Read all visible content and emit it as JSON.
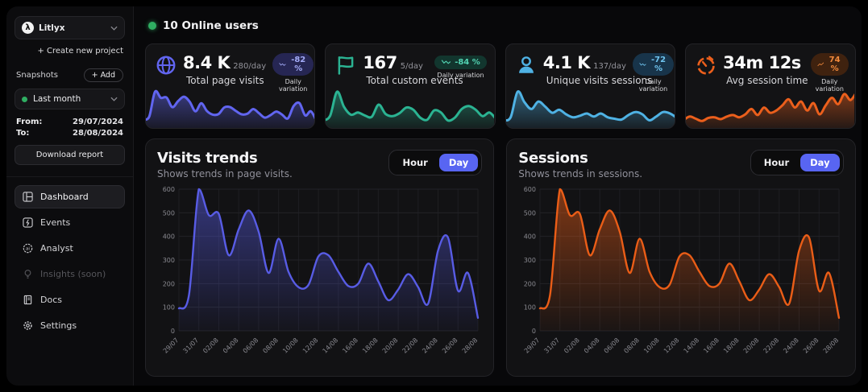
{
  "sidebar": {
    "project": {
      "name": "Litlyx"
    },
    "create_new_project": "+ Create new project",
    "snapshots_label": "Snapshots",
    "add_button": "+ Add",
    "snapshot_selected": "Last month",
    "snapshot_dot_color": "#2fae62",
    "from_label": "From:",
    "from_value": "29/07/2024",
    "to_label": "To:",
    "to_value": "28/08/2024",
    "download_button": "Download report",
    "nav": [
      {
        "label": "Dashboard",
        "icon": "dashboard-icon",
        "state": "active"
      },
      {
        "label": "Events",
        "icon": "events-icon",
        "state": "normal"
      },
      {
        "label": "Analyst",
        "icon": "analyst-icon",
        "state": "normal"
      },
      {
        "label": "Insights (soon)",
        "icon": "insights-icon",
        "state": "disabled"
      },
      {
        "label": "Docs",
        "icon": "docs-icon",
        "state": "normal"
      },
      {
        "label": "Settings",
        "icon": "settings-icon",
        "state": "normal"
      }
    ]
  },
  "header": {
    "online_users": "10 Online users",
    "online_dot_color": "#2fae62"
  },
  "toggle": {
    "hour": "Hour",
    "day": "Day",
    "active": "Day",
    "active_color": "#5865f2"
  },
  "stat_cards": [
    {
      "icon": "globe-icon",
      "value": "8.4 K",
      "per_day": "280/day",
      "label": "Total page visits",
      "badge": "-82 %",
      "badge_trend": "down",
      "badge_caption": "Daily variation",
      "accent": "#6165f0",
      "badge_bg": "#262653",
      "badge_fg": "#a3abf7",
      "spark": [
        95,
        150,
        600,
        490,
        495,
        320,
        430,
        510,
        420,
        245,
        390,
        250,
        185,
        195,
        315,
        320,
        250,
        190,
        200,
        285,
        210,
        130,
        175,
        240,
        185,
        115,
        340,
        395,
        170,
        245,
        55
      ]
    },
    {
      "icon": "flag-icon",
      "value": "167",
      "per_day": "5/day",
      "label": "Total custom events",
      "badge": "-84 %",
      "badge_trend": "down",
      "badge_caption": "Daily variation",
      "accent": "#2bb392",
      "badge_bg": "#12362e",
      "badge_fg": "#52d3b2",
      "spark": [
        12,
        25,
        92,
        50,
        28,
        34,
        26,
        22,
        56,
        30,
        24,
        32,
        48,
        42,
        20,
        14,
        40,
        34,
        12,
        20,
        44,
        52,
        42,
        24,
        34,
        14
      ]
    },
    {
      "icon": "user-icon",
      "value": "4.1 K",
      "per_day": "137/day",
      "label": "Unique visits sessions",
      "badge": "-72 %",
      "badge_trend": "down",
      "badge_caption": "Daily variation",
      "accent": "#4fb2e4",
      "badge_bg": "#18344a",
      "badge_fg": "#6fc4ef",
      "spark": [
        12,
        20,
        88,
        60,
        42,
        62,
        48,
        32,
        40,
        28,
        20,
        24,
        30,
        22,
        30,
        20,
        16,
        14,
        26,
        34,
        28,
        12,
        22,
        34,
        30,
        18
      ]
    },
    {
      "icon": "timer-icon",
      "value": "34m 12s",
      "per_day": "",
      "label": "Avg session time",
      "badge": "74 %",
      "badge_trend": "up",
      "badge_caption": "Daily variation",
      "accent": "#eb5f1c",
      "badge_bg": "#3f220f",
      "badge_fg": "#f28a3c",
      "spark": [
        12,
        22,
        16,
        10,
        18,
        20,
        15,
        22,
        26,
        20,
        28,
        42,
        26,
        46,
        32,
        38,
        52,
        68,
        46,
        62,
        38,
        58,
        28,
        52,
        72,
        55,
        82,
        66,
        88
      ]
    }
  ],
  "chart_data": [
    {
      "type": "area",
      "title": "Visits trends",
      "subtitle": "Shows trends in page visits.",
      "color": "#585ce5",
      "x_tick_labels": [
        "29/07",
        "31/07",
        "02/08",
        "04/08",
        "06/08",
        "08/08",
        "10/08",
        "12/08",
        "14/08",
        "16/08",
        "18/08",
        "20/08",
        "22/08",
        "24/08",
        "26/08",
        "28/08"
      ],
      "values": [
        95,
        150,
        600,
        490,
        495,
        320,
        430,
        510,
        420,
        245,
        390,
        250,
        185,
        195,
        315,
        320,
        250,
        190,
        200,
        285,
        210,
        130,
        175,
        240,
        185,
        115,
        340,
        395,
        170,
        245,
        55
      ],
      "ylim": [
        0,
        600
      ],
      "yticks": [
        0,
        100,
        200,
        300,
        400,
        500,
        600
      ],
      "grid": true,
      "legend": "none"
    },
    {
      "type": "area",
      "title": "Sessions",
      "subtitle": "Shows trends in sessions.",
      "color": "#ea5d17",
      "x_tick_labels": [
        "29/07",
        "31/07",
        "02/08",
        "04/08",
        "06/08",
        "08/08",
        "10/08",
        "12/08",
        "14/08",
        "16/08",
        "18/08",
        "20/08",
        "22/08",
        "24/08",
        "26/08",
        "28/08"
      ],
      "values": [
        95,
        150,
        600,
        490,
        495,
        320,
        430,
        510,
        420,
        245,
        390,
        250,
        185,
        195,
        315,
        320,
        250,
        190,
        200,
        285,
        210,
        130,
        175,
        240,
        185,
        115,
        340,
        395,
        170,
        245,
        55
      ],
      "ylim": [
        0,
        600
      ],
      "yticks": [
        0,
        100,
        200,
        300,
        400,
        500,
        600
      ],
      "grid": true,
      "legend": "none"
    }
  ]
}
